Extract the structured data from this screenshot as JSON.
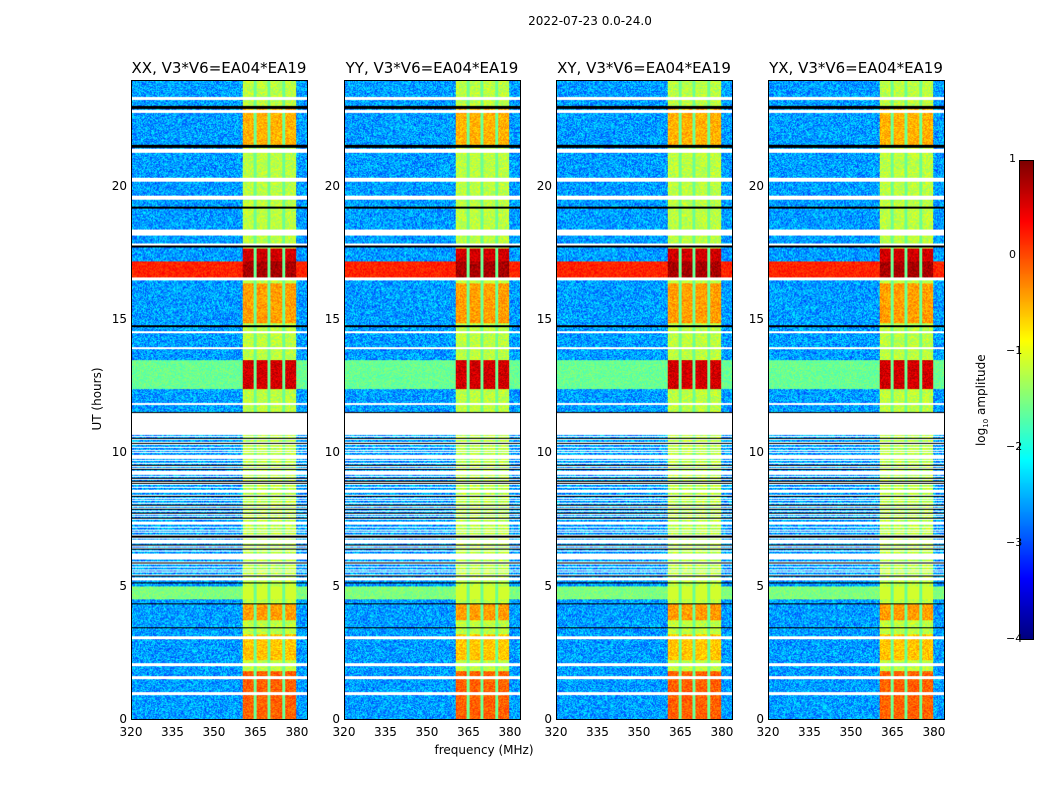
{
  "title": "2022-07-23 0.0-24.0",
  "xlabel": "frequency (MHz)",
  "ylabel": "UT (hours)",
  "chart_data": {
    "type": "heatmap",
    "title": "2022-07-23 0.0-24.0",
    "xlabel": "frequency (MHz)",
    "ylabel": "UT (hours)",
    "xlim": [
      320,
      384
    ],
    "ylim": [
      0,
      24
    ],
    "xticks": [
      "320",
      "335",
      "350",
      "365",
      "380"
    ],
    "xtick_values": [
      320,
      335,
      350,
      365,
      380
    ],
    "yticks": [
      "0",
      "5",
      "10",
      "15",
      "20"
    ],
    "ytick_values": [
      0,
      5,
      10,
      15,
      20
    ],
    "panels": [
      {
        "title": "XX, V3*V6=EA04*EA19"
      },
      {
        "title": "YY, V3*V6=EA04*EA19"
      },
      {
        "title": "XY, V3*V6=EA04*EA19"
      },
      {
        "title": "YX, V3*V6=EA04*EA19"
      }
    ],
    "colorbar": {
      "label": "log10 amplitude",
      "label_main": "log",
      "label_sub": "10",
      "label_end": " amplitude",
      "range": [
        -4,
        1
      ],
      "ticks": [
        "1",
        "0",
        "−1",
        "−2",
        "−3",
        "−4"
      ],
      "tick_values": [
        1,
        0,
        -1,
        -2,
        -3,
        -4
      ],
      "colormap": "jet"
    },
    "model": {
      "background_level": -2.6,
      "band_mhz": [
        360.4,
        379.9
      ],
      "band_level": -1.2,
      "band_gaps_mhz": [
        365.1,
        370.1,
        375.5
      ],
      "hot_periods": [
        {
          "t": [
            16.6,
            17.2
          ],
          "level_all": 0.2,
          "level_band": 0.8
        },
        {
          "t": [
            17.2,
            17.7
          ],
          "level_band": 0.6
        },
        {
          "t": [
            12.4,
            13.5
          ],
          "level_band": 0.6,
          "level_all": -1.6
        },
        {
          "t": [
            14.9,
            16.4
          ],
          "level_band": -0.4
        },
        {
          "t": [
            21.5,
            23.0
          ],
          "level_band": -0.5
        },
        {
          "t": [
            0,
            1.8
          ],
          "level_band": -0.1
        },
        {
          "t": [
            3.7,
            4.3
          ],
          "level_band": -0.4
        },
        {
          "t": [
            2.2,
            3.2
          ],
          "level_band": -0.6
        },
        {
          "t": [
            4.5,
            5.0
          ],
          "level_all": -1.5
        }
      ],
      "flag_white": [
        [
          10.7,
          11.5
        ],
        [
          21.3,
          21.45
        ],
        [
          20.2,
          20.35
        ],
        [
          19.55,
          19.7
        ],
        [
          18.2,
          18.4
        ],
        [
          17.8,
          17.9
        ],
        [
          16.5,
          16.6
        ],
        [
          14.5,
          14.6
        ],
        [
          13.9,
          14.0
        ],
        [
          11.8,
          11.9
        ],
        [
          9.8,
          9.9
        ],
        [
          9.2,
          9.3
        ],
        [
          8.5,
          8.6
        ],
        [
          7.3,
          7.4
        ],
        [
          6.6,
          6.7
        ],
        [
          6.0,
          6.2
        ],
        [
          5.2,
          5.3
        ],
        [
          3.0,
          3.1
        ],
        [
          2.0,
          2.1
        ],
        [
          1.5,
          1.6
        ],
        [
          0.9,
          1.0
        ],
        [
          22.8,
          22.9
        ],
        [
          23.3,
          23.4
        ]
      ],
      "flag_black": [
        [
          21.5,
          21.6
        ],
        [
          22.95,
          23.05
        ],
        [
          19.2,
          19.28
        ],
        [
          17.75,
          17.8
        ],
        [
          14.75,
          14.82
        ],
        [
          11.5,
          11.55
        ],
        [
          10.3,
          10.35
        ],
        [
          9.6,
          9.65
        ],
        [
          8.9,
          8.95
        ],
        [
          7.7,
          7.75
        ],
        [
          6.8,
          6.85
        ],
        [
          6.4,
          6.45
        ],
        [
          5.1,
          5.15
        ],
        [
          4.3,
          4.35
        ],
        [
          3.4,
          3.45
        ],
        [
          2.0,
          2.02
        ]
      ],
      "sparse_period": [
        5.3,
        10.7
      ]
    }
  }
}
